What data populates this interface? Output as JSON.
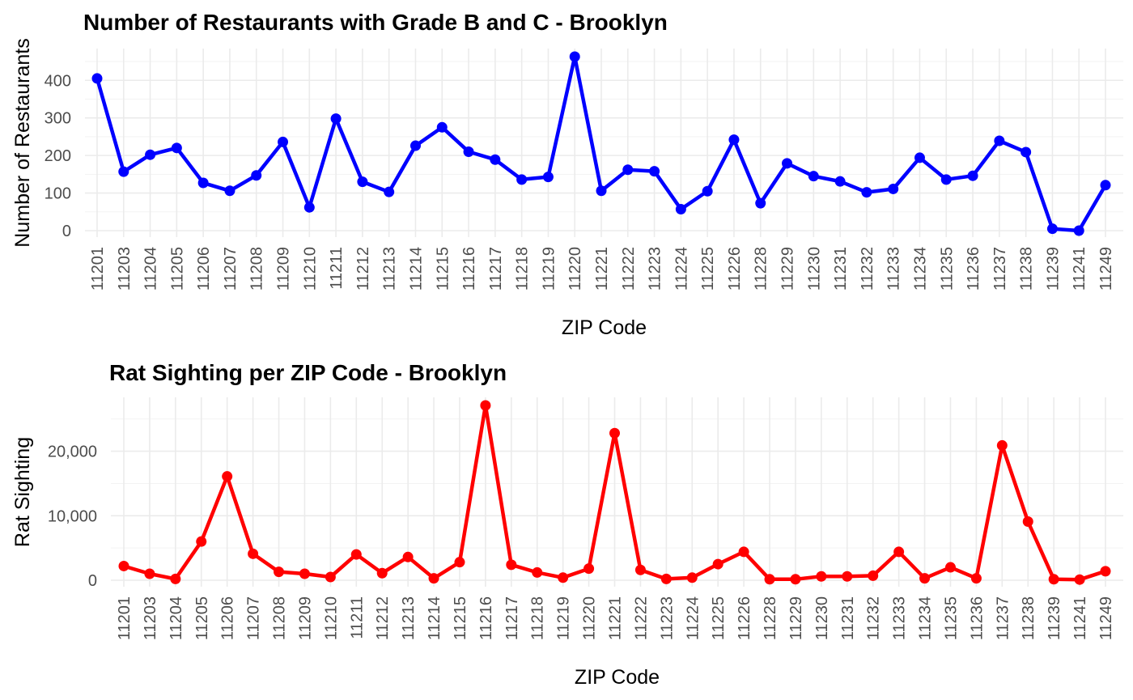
{
  "chart_data": [
    {
      "type": "line",
      "title": "Number of Restaurants with Grade B and C - Brooklyn",
      "xlabel": "ZIP Code",
      "ylabel": "Number of Restaurants",
      "color": "#0000ff",
      "ylim": [
        0,
        463
      ],
      "yticks": [
        0,
        100,
        200,
        300,
        400
      ],
      "ytick_labels": [
        "0",
        "100",
        "200",
        "300",
        "400"
      ],
      "grid": true,
      "categories": [
        "11201",
        "11203",
        "11204",
        "11205",
        "11206",
        "11207",
        "11208",
        "11209",
        "11210",
        "11211",
        "11212",
        "11213",
        "11214",
        "11215",
        "11216",
        "11217",
        "11218",
        "11219",
        "11220",
        "11221",
        "11222",
        "11223",
        "11224",
        "11225",
        "11226",
        "11228",
        "11229",
        "11230",
        "11231",
        "11232",
        "11233",
        "11234",
        "11235",
        "11236",
        "11237",
        "11238",
        "11239",
        "11241",
        "11249"
      ],
      "values": [
        405,
        157,
        202,
        220,
        127,
        106,
        147,
        236,
        62,
        298,
        130,
        103,
        226,
        275,
        210,
        189,
        136,
        143,
        463,
        106,
        162,
        158,
        57,
        105,
        242,
        73,
        179,
        145,
        131,
        102,
        111,
        194,
        136,
        146,
        239,
        209,
        5,
        0,
        121
      ]
    },
    {
      "type": "line",
      "title": "Rat Sighting per ZIP Code - Brooklyn",
      "xlabel": "ZIP Code",
      "ylabel": "Rat Sighting",
      "color": "#ff0000",
      "ylim": [
        0,
        27100
      ],
      "yticks": [
        0,
        10000,
        20000
      ],
      "ytick_labels": [
        "0",
        "10,000",
        "20,000"
      ],
      "grid": true,
      "categories": [
        "11201",
        "11203",
        "11204",
        "11205",
        "11206",
        "11207",
        "11208",
        "11209",
        "11210",
        "11211",
        "11212",
        "11213",
        "11214",
        "11215",
        "11216",
        "11217",
        "11218",
        "11219",
        "11220",
        "11221",
        "11222",
        "11223",
        "11224",
        "11225",
        "11226",
        "11228",
        "11229",
        "11230",
        "11231",
        "11232",
        "11233",
        "11234",
        "11235",
        "11236",
        "11237",
        "11238",
        "11239",
        "11241",
        "11249"
      ],
      "values": [
        2200,
        1000,
        200,
        6000,
        16100,
        4100,
        1300,
        1000,
        500,
        4000,
        1100,
        3600,
        300,
        2800,
        27100,
        2400,
        1200,
        400,
        1800,
        22800,
        1600,
        200,
        400,
        2500,
        4400,
        150,
        150,
        600,
        600,
        700,
        4400,
        300,
        2000,
        300,
        20900,
        9100,
        150,
        100,
        1400
      ]
    }
  ]
}
